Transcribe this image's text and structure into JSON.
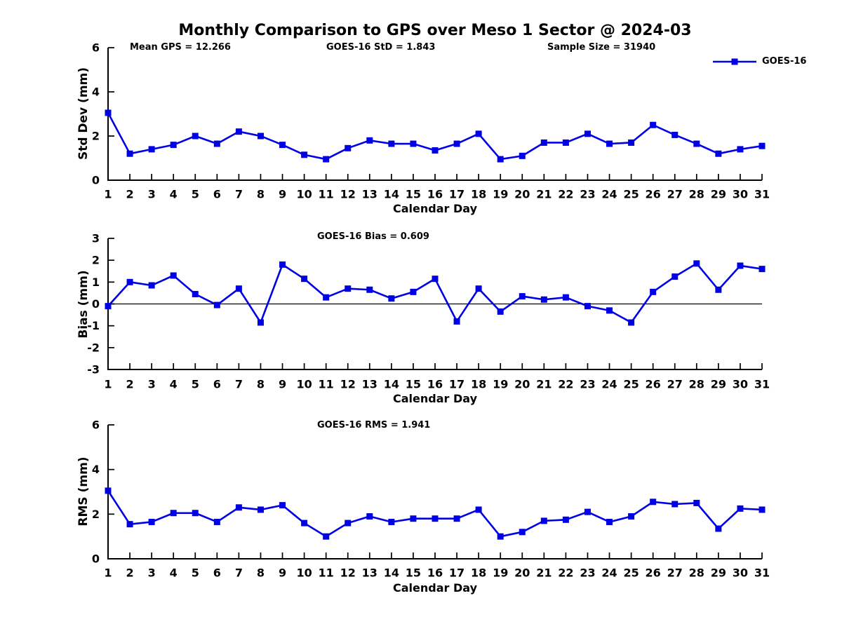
{
  "title": "Monthly Comparison to GPS over Meso 1 Sector @ 2024-03",
  "legend": {
    "label": "GOES-16"
  },
  "colors": {
    "series": "#0000e6",
    "axis": "#000000",
    "zero_line": "#000000",
    "background": "#ffffff"
  },
  "chart_data": [
    {
      "type": "line",
      "name": "std-dev",
      "series": "GOES-16",
      "xlabel": "Calendar Day",
      "ylabel": "Std Dev (mm)",
      "ylim": [
        0,
        6
      ],
      "yticks": [
        0,
        2,
        4,
        6
      ],
      "x": [
        1,
        2,
        3,
        4,
        5,
        6,
        7,
        8,
        9,
        10,
        11,
        12,
        13,
        14,
        15,
        16,
        17,
        18,
        19,
        20,
        21,
        22,
        23,
        24,
        25,
        26,
        27,
        28,
        29,
        30,
        31
      ],
      "values": [
        3.05,
        1.2,
        1.4,
        1.6,
        2.0,
        1.65,
        2.2,
        2.0,
        1.6,
        1.15,
        0.95,
        1.45,
        1.8,
        1.65,
        1.65,
        1.35,
        1.65,
        2.1,
        0.95,
        1.1,
        1.7,
        1.7,
        2.1,
        1.65,
        1.7,
        2.5,
        2.05,
        1.65,
        1.2,
        1.4,
        1.55
      ],
      "marker": "square",
      "grid": false,
      "annotations": [
        {
          "text": "Mean GPS = 12.266",
          "anchor": "left"
        },
        {
          "text": "GOES-16 StD = 1.843",
          "anchor": "center"
        },
        {
          "text": "Sample Size = 31940",
          "anchor": "right"
        }
      ],
      "legend_visible": true,
      "legend_position": "top-right"
    },
    {
      "type": "line",
      "name": "bias",
      "series": "GOES-16",
      "xlabel": "Calendar Day",
      "ylabel": "Bias (mm)",
      "ylim": [
        -3,
        3
      ],
      "yticks": [
        -3,
        -2,
        -1,
        0,
        1,
        2,
        3
      ],
      "zero_line": true,
      "x": [
        1,
        2,
        3,
        4,
        5,
        6,
        7,
        8,
        9,
        10,
        11,
        12,
        13,
        14,
        15,
        16,
        17,
        18,
        19,
        20,
        21,
        22,
        23,
        24,
        25,
        26,
        27,
        28,
        29,
        30,
        31
      ],
      "values": [
        -0.1,
        1.0,
        0.85,
        1.3,
        0.45,
        -0.05,
        0.7,
        -0.85,
        1.8,
        1.15,
        0.3,
        0.7,
        0.65,
        0.25,
        0.55,
        1.15,
        -0.8,
        0.7,
        -0.35,
        0.35,
        0.2,
        0.3,
        -0.1,
        -0.3,
        -0.85,
        0.55,
        1.25,
        1.85,
        0.65,
        1.75,
        1.6
      ],
      "marker": "square",
      "grid": false,
      "annotations": [
        {
          "text": "GOES-16 Bias = 0.609",
          "anchor": "center"
        }
      ],
      "legend_visible": false
    },
    {
      "type": "line",
      "name": "rms",
      "series": "GOES-16",
      "xlabel": "Calendar Day",
      "ylabel": "RMS (mm)",
      "ylim": [
        0,
        6
      ],
      "yticks": [
        0,
        2,
        4,
        6
      ],
      "x": [
        1,
        2,
        3,
        4,
        5,
        6,
        7,
        8,
        9,
        10,
        11,
        12,
        13,
        14,
        15,
        16,
        17,
        18,
        19,
        20,
        21,
        22,
        23,
        24,
        25,
        26,
        27,
        28,
        29,
        30,
        31
      ],
      "values": [
        3.05,
        1.55,
        1.65,
        2.05,
        2.05,
        1.65,
        2.3,
        2.2,
        2.4,
        1.6,
        1.0,
        1.6,
        1.9,
        1.65,
        1.8,
        1.8,
        1.8,
        2.2,
        1.0,
        1.2,
        1.7,
        1.75,
        2.1,
        1.65,
        1.9,
        2.55,
        2.45,
        2.5,
        1.35,
        2.25,
        2.2
      ],
      "marker": "square",
      "grid": false,
      "annotations": [
        {
          "text": "GOES-16 RMS = 1.941",
          "anchor": "center"
        }
      ],
      "legend_visible": false
    }
  ]
}
